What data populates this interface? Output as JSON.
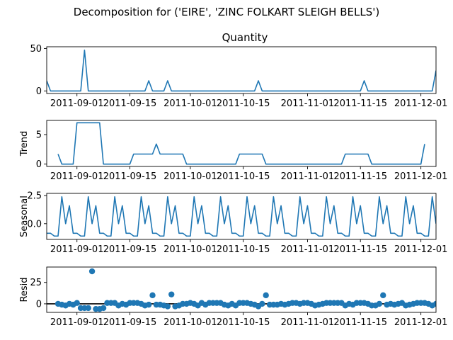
{
  "figure": {
    "suptitle": "Decomposition for ('EIRE', 'ZINC FOLKART SLEIGH BELLS')"
  },
  "chart_data": [
    {
      "type": "line",
      "panel": "observed",
      "title": "Quantity",
      "ylabel": "",
      "color": "#1f77b4",
      "x_start": "2011-08-24",
      "x_end": "2011-12-05",
      "xticks": [
        "2011-09-01",
        "2011-09-15",
        "2011-10-01",
        "2011-10-15",
        "2011-11-01",
        "2011-11-15",
        "2011-12-01"
      ],
      "yticks": [
        0,
        50
      ],
      "ylim": [
        -3,
        52
      ],
      "x": [
        "2011-08-24",
        "2011-08-25",
        "2011-09-02",
        "2011-09-03",
        "2011-09-04",
        "2011-09-19",
        "2011-09-20",
        "2011-09-21",
        "2011-09-24",
        "2011-09-25",
        "2011-09-26",
        "2011-10-18",
        "2011-10-19",
        "2011-10-20",
        "2011-11-15",
        "2011-11-16",
        "2011-11-17",
        "2011-12-04",
        "2011-12-05"
      ],
      "values": [
        12,
        0,
        0,
        48,
        0,
        0,
        12,
        0,
        0,
        12,
        0,
        0,
        12,
        0,
        0,
        12,
        0,
        0,
        24
      ]
    },
    {
      "type": "line",
      "panel": "trend",
      "title": "",
      "ylabel": "Trend",
      "color": "#1f77b4",
      "x_start": "2011-08-24",
      "x_end": "2011-12-05",
      "xticks": [
        "2011-09-01",
        "2011-09-15",
        "2011-10-01",
        "2011-10-15",
        "2011-11-01",
        "2011-11-15",
        "2011-12-01"
      ],
      "yticks": [
        0,
        5
      ],
      "ylim": [
        -0.4,
        7.4
      ],
      "x": [
        "2011-08-27",
        "2011-08-28",
        "2011-08-31",
        "2011-09-01",
        "2011-09-07",
        "2011-09-08",
        "2011-09-15",
        "2011-09-16",
        "2011-09-21",
        "2011-09-22",
        "2011-09-23",
        "2011-09-29",
        "2011-09-30",
        "2011-10-13",
        "2011-10-14",
        "2011-10-20",
        "2011-10-21",
        "2011-11-10",
        "2011-11-11",
        "2011-11-17",
        "2011-11-18",
        "2011-11-30",
        "2011-12-01",
        "2011-12-02"
      ],
      "values": [
        1.7,
        0,
        0,
        7,
        7,
        0,
        0,
        1.7,
        1.7,
        3.4,
        1.7,
        1.7,
        0,
        0,
        1.7,
        1.7,
        0,
        0,
        1.7,
        1.7,
        0,
        0,
        0,
        3.4
      ]
    },
    {
      "type": "line",
      "panel": "seasonal",
      "title": "",
      "ylabel": "Seasonal",
      "color": "#1f77b4",
      "x_start": "2011-08-24",
      "x_end": "2011-12-05",
      "xticks": [
        "2011-09-01",
        "2011-09-15",
        "2011-10-01",
        "2011-10-15",
        "2011-11-01",
        "2011-11-15",
        "2011-12-01"
      ],
      "yticks": [
        0.0,
        2.5
      ],
      "ylim": [
        -1.4,
        2.7
      ],
      "x_start_values": "2011-08-24",
      "pattern": [
        -0.85,
        -0.85,
        -1.1,
        -1.1,
        2.4,
        0.0,
        1.6
      ],
      "n_points": 104
    },
    {
      "type": "scatter",
      "panel": "resid",
      "title": "",
      "ylabel": "Resid",
      "color": "#1f77b4",
      "x_start": "2011-08-24",
      "x_end": "2011-12-05",
      "xticks": [
        "2011-09-01",
        "2011-09-15",
        "2011-10-01",
        "2011-10-15",
        "2011-11-01",
        "2011-11-15",
        "2011-12-01"
      ],
      "yticks": [
        0,
        25
      ],
      "ylim": [
        -10,
        43
      ],
      "baseline": 0,
      "x_start_values": "2011-08-27",
      "values": [
        0,
        -1,
        -2,
        0,
        -1,
        1,
        -5,
        -5,
        -5,
        38,
        -6,
        -6,
        -5,
        1,
        1,
        1,
        -2,
        0,
        -1,
        1,
        1,
        1,
        0,
        -2,
        -1,
        10,
        -1,
        -1,
        -2,
        -3,
        11,
        -3,
        -2,
        0,
        0,
        1,
        0,
        -2,
        1,
        -1,
        1,
        1,
        1,
        1,
        -1,
        -2,
        0,
        -2,
        1,
        1,
        1,
        0,
        -1,
        -3,
        0,
        10,
        -1,
        -1,
        -1,
        0,
        -1,
        0,
        1,
        1,
        0,
        1,
        1,
        0,
        -2,
        -1,
        0,
        1,
        1,
        1,
        1,
        1,
        -2,
        0,
        -1,
        1,
        1,
        1,
        0,
        -2,
        -2,
        0,
        10,
        -1,
        0,
        -1,
        0,
        1,
        -2,
        -1,
        0,
        1,
        1,
        1,
        0,
        -2,
        0,
        1,
        1,
        -2
      ]
    }
  ]
}
